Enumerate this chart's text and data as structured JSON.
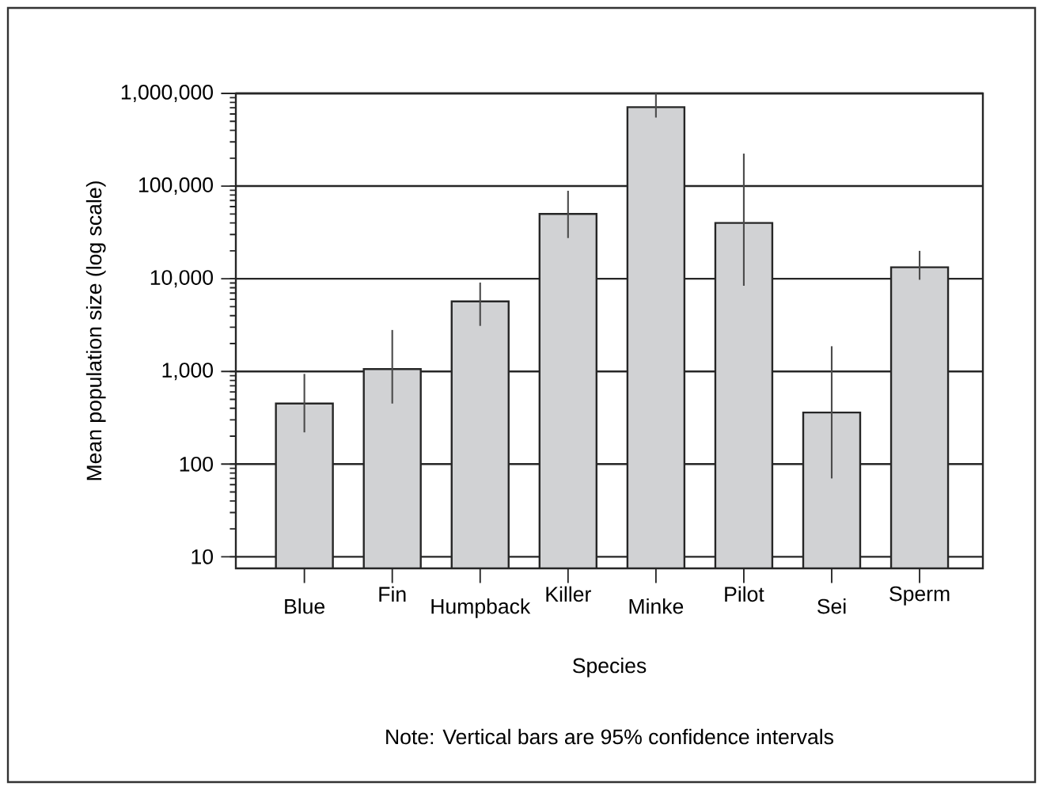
{
  "chart_data": {
    "type": "bar",
    "xlabel": "Species",
    "ylabel": "Mean population size (log scale)",
    "categories": [
      "Blue",
      "Fin",
      "Humpback",
      "Killer",
      "Minke",
      "Pilot",
      "Sei",
      "Sperm"
    ],
    "values": [
      450,
      1060,
      5700,
      50000,
      710000,
      40000,
      360,
      13300
    ],
    "errors": [
      [
        220,
        940
      ],
      [
        450,
        2800
      ],
      [
        3100,
        9100
      ],
      [
        27500,
        89000
      ],
      [
        550000,
        1000000
      ],
      [
        8400,
        224000
      ],
      [
        70,
        1870
      ],
      [
        9750,
        20000
      ]
    ],
    "color": "#d1d2d4",
    "log": "y",
    "ylim": [
      7.5,
      1000000
    ],
    "yticks": [
      10,
      100,
      {
        "value": 1000,
        "label": "1,000"
      },
      {
        "value": 10000,
        "label": "10,000"
      },
      {
        "value": 100000,
        "label": "100,000"
      },
      {
        "value": 1000000,
        "label": "1,000,000"
      }
    ],
    "grid": "y",
    "annotations": [
      "Note: Vertical bars are 95% confidence intervals"
    ]
  }
}
